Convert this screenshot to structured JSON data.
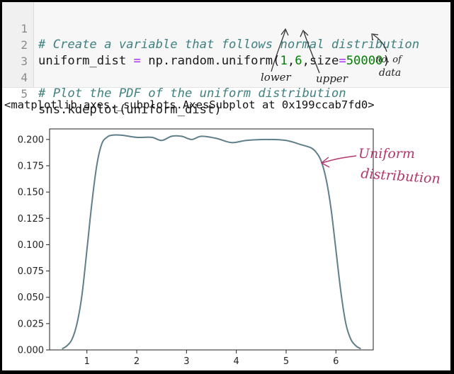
{
  "code": {
    "lines": [
      {
        "num": "1",
        "text": "# Create a variable that follows normal distribution",
        "kind": "comment"
      },
      {
        "num": "2",
        "kind": "code",
        "parts": {
          "var": "uniform_dist",
          "eq": " = ",
          "call": "np.random.uniform(",
          "a": "1",
          "sep1": ",",
          "b": "6",
          "sep2": ",",
          "kw": "size",
          "kweq": "=",
          "c": "50000",
          "close": ")"
        }
      },
      {
        "num": "3",
        "text": "",
        "kind": "blank"
      },
      {
        "num": "4",
        "text": "# Plot the PDF of the uniform distribution",
        "kind": "comment"
      },
      {
        "num": "5",
        "text": "sns.kdeplot(uniform_dist)",
        "kind": "code"
      }
    ]
  },
  "annotations": {
    "lower": "lower",
    "upper": "upper",
    "no_of_data_1": "no. of",
    "no_of_data_2": "data",
    "uniform_1": "Uniform",
    "uniform_2": "distribution"
  },
  "output_text": "<matplotlib.axes._subplots.AxesSubplot at 0x199ccab7fd0>",
  "chart_data": {
    "type": "line",
    "title": "",
    "xlabel": "",
    "ylabel": "",
    "xlim": [
      0.25,
      6.75
    ],
    "ylim": [
      0,
      0.21
    ],
    "xticks": [
      1,
      2,
      3,
      4,
      5,
      6
    ],
    "yticks": [
      0.0,
      0.025,
      0.05,
      0.075,
      0.1,
      0.125,
      0.15,
      0.175,
      0.2
    ],
    "ytick_labels": [
      "0.000",
      "0.025",
      "0.050",
      "0.075",
      "0.100",
      "0.125",
      "0.150",
      "0.175",
      "0.200"
    ],
    "series": [
      {
        "color": "#5f7f8a",
        "x": [
          0.5,
          0.6,
          0.7,
          0.8,
          0.9,
          1.0,
          1.1,
          1.2,
          1.3,
          1.4,
          1.5,
          1.7,
          2.0,
          2.3,
          2.5,
          2.7,
          2.9,
          3.1,
          3.3,
          3.6,
          3.9,
          4.2,
          4.6,
          5.0,
          5.3,
          5.5,
          5.6,
          5.7,
          5.8,
          5.9,
          6.0,
          6.1,
          6.2,
          6.3,
          6.4,
          6.5
        ],
        "y": [
          0.001,
          0.004,
          0.01,
          0.025,
          0.052,
          0.095,
          0.14,
          0.176,
          0.196,
          0.202,
          0.204,
          0.204,
          0.202,
          0.202,
          0.199,
          0.203,
          0.203,
          0.2,
          0.203,
          0.201,
          0.197,
          0.199,
          0.2,
          0.199,
          0.195,
          0.192,
          0.188,
          0.18,
          0.163,
          0.135,
          0.095,
          0.055,
          0.025,
          0.01,
          0.004,
          0.001
        ]
      }
    ]
  }
}
